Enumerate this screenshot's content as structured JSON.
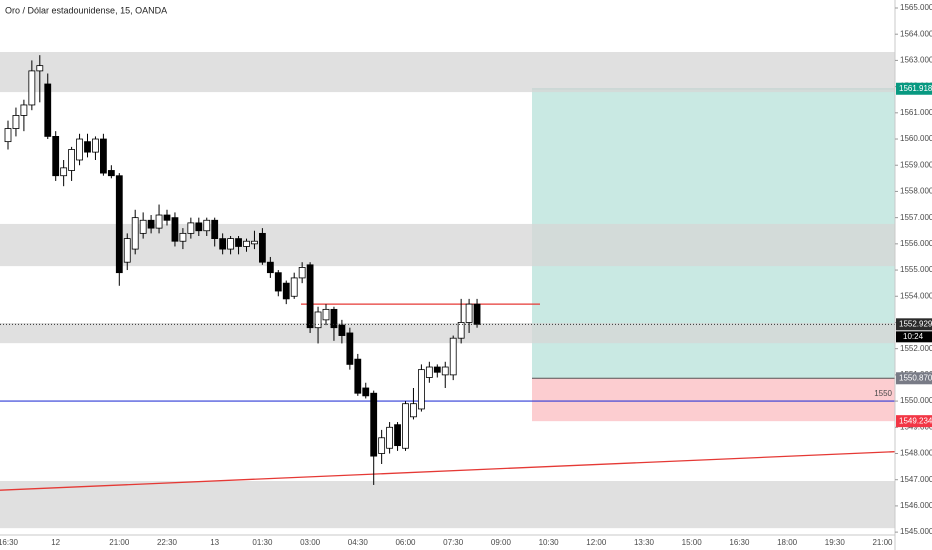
{
  "chart_data": {
    "type": "candlestick",
    "title": "Oro / Dólar estadounidense, 15, OANDA",
    "categories": [
      "16:30",
      null,
      null,
      null,
      null,
      null,
      "12",
      null,
      null,
      null,
      null,
      null,
      null,
      null,
      "21:00",
      null,
      null,
      null,
      null,
      null,
      "22:30",
      null,
      null,
      null,
      null,
      null,
      "13",
      null,
      null,
      null,
      null,
      null,
      "01:30",
      null,
      null,
      null,
      null,
      null,
      "03:00",
      null,
      null,
      null,
      null,
      null,
      "04:30",
      null,
      null,
      null,
      null,
      null,
      "06:00",
      null,
      null,
      null,
      null,
      null,
      "07:30",
      null,
      null,
      null,
      null,
      null,
      "09:00",
      null,
      null,
      null,
      null,
      null,
      "10:30",
      null,
      null,
      null,
      null,
      null,
      "12:00",
      null,
      null,
      null,
      null,
      null,
      "13:30",
      null,
      null,
      null,
      null,
      null,
      "15:00",
      null,
      null,
      null,
      null,
      null,
      "16:30",
      null,
      null,
      null,
      null,
      null,
      "18:00",
      null,
      null,
      null,
      null,
      null,
      "19:30",
      null,
      null,
      null,
      null,
      null,
      "21:00",
      null
    ],
    "open": [
      1559.9,
      1560.4,
      1560.9,
      1561.3,
      1562.6,
      1562.1,
      1560.1,
      1558.6,
      1558.8,
      1559.2,
      1559.9,
      1559.5,
      1560.0,
      1558.8,
      1558.6,
      1555.3,
      1555.8,
      1556.4,
      1556.9,
      1556.6,
      1557.1,
      1557.0,
      1556.1,
      1556.4,
      1556.8,
      1556.5,
      1556.9,
      1556.2,
      1555.8,
      1556.2,
      1555.9,
      1556.0,
      1556.4,
      1555.3,
      1554.9,
      1554.5,
      1554.0,
      1554.7,
      1555.2,
      1552.8,
      1553.1,
      1553.5,
      1552.9,
      1552.6,
      1551.6,
      1550.5,
      1550.3,
      1548.0,
      1548.2,
      1549.1,
      1548.2,
      1549.4,
      1549.7,
      1550.9,
      1551.3,
      1551.0,
      1551.0,
      1552.4,
      1553.0,
      1553.7,
      null,
      null,
      null,
      null,
      null,
      null,
      null,
      null,
      null,
      null,
      null,
      null,
      null,
      null,
      null,
      null,
      null,
      null,
      null,
      null,
      null,
      null,
      null,
      null,
      null,
      null,
      null,
      null,
      null,
      null,
      null,
      null,
      null,
      null,
      null,
      null,
      null,
      null,
      null,
      null,
      null,
      null,
      null,
      null,
      null,
      null,
      null,
      null,
      null,
      null,
      null,
      null
    ],
    "high": [
      1560.7,
      1561.2,
      1561.5,
      1563.0,
      1563.2,
      1562.5,
      1560.3,
      1559.2,
      1559.7,
      1560.2,
      1560.2,
      1560.1,
      1560.2,
      1559.0,
      1558.7,
      1556.4,
      1557.3,
      1557.2,
      1557.1,
      1557.5,
      1557.3,
      1557.2,
      1556.6,
      1557.0,
      1557.0,
      1557.0,
      1557.0,
      1556.4,
      1556.3,
      1556.3,
      1556.2,
      1556.5,
      1556.6,
      1555.5,
      1555.0,
      1554.6,
      1554.9,
      1555.3,
      1555.3,
      1553.6,
      1553.7,
      1553.6,
      1553.1,
      1552.8,
      1551.8,
      1550.7,
      1550.4,
      1548.9,
      1549.2,
      1549.2,
      1550.0,
      1550.5,
      1551.4,
      1551.5,
      1551.4,
      1551.5,
      1552.5,
      1553.9,
      1553.9,
      1553.9,
      null,
      null,
      null,
      null,
      null,
      null,
      null,
      null,
      null,
      null,
      null,
      null,
      null,
      null,
      null,
      null,
      null,
      null,
      null,
      null,
      null,
      null,
      null,
      null,
      null,
      null,
      null,
      null,
      null,
      null,
      null,
      null,
      null,
      null,
      null,
      null,
      null,
      null,
      null,
      null,
      null,
      null,
      null,
      null,
      null,
      null,
      null,
      null,
      null,
      null,
      null,
      null
    ],
    "low": [
      1559.6,
      1560.1,
      1560.3,
      1561.1,
      1561.4,
      1560.0,
      1558.4,
      1558.2,
      1558.4,
      1559.0,
      1559.3,
      1559.2,
      1558.6,
      1558.5,
      1554.4,
      1555.0,
      1555.6,
      1556.2,
      1556.4,
      1556.4,
      1556.7,
      1555.9,
      1555.8,
      1556.2,
      1556.3,
      1556.3,
      1555.9,
      1555.6,
      1555.6,
      1555.6,
      1555.7,
      1555.8,
      1555.2,
      1554.7,
      1554.0,
      1553.7,
      1553.9,
      1554.5,
      1552.6,
      1552.2,
      1552.9,
      1552.3,
      1552.2,
      1551.2,
      1550.2,
      1550.1,
      1546.8,
      1547.6,
      1548.0,
      1548.1,
      1548.1,
      1549.3,
      1549.6,
      1550.7,
      1550.9,
      1550.5,
      1550.8,
      1552.2,
      1552.6,
      1552.8,
      null,
      null,
      null,
      null,
      null,
      null,
      null,
      null,
      null,
      null,
      null,
      null,
      null,
      null,
      null,
      null,
      null,
      null,
      null,
      null,
      null,
      null,
      null,
      null,
      null,
      null,
      null,
      null,
      null,
      null,
      null,
      null,
      null,
      null,
      null,
      null,
      null,
      null,
      null,
      null,
      null,
      null,
      null,
      null,
      null,
      null,
      null,
      null,
      null,
      null,
      null,
      null
    ],
    "close": [
      1560.4,
      1560.9,
      1561.3,
      1562.6,
      1562.8,
      1560.1,
      1558.6,
      1558.9,
      1559.6,
      1560.0,
      1559.5,
      1560.0,
      1558.7,
      1558.6,
      1554.9,
      1556.2,
      1557.0,
      1556.9,
      1556.6,
      1557.1,
      1556.9,
      1556.1,
      1556.4,
      1556.8,
      1556.5,
      1556.9,
      1556.2,
      1555.8,
      1556.2,
      1555.9,
      1556.1,
      1556.1,
      1555.3,
      1554.9,
      1554.2,
      1553.9,
      1554.7,
      1555.1,
      1552.8,
      1553.4,
      1553.5,
      1552.8,
      1552.5,
      1551.4,
      1550.3,
      1550.2,
      1547.9,
      1548.6,
      1549.0,
      1548.3,
      1549.9,
      1549.9,
      1551.2,
      1551.3,
      1551.1,
      1551.3,
      1552.4,
      1553.0,
      1553.7,
      1552.929,
      null,
      null,
      null,
      null,
      null,
      null,
      null,
      null,
      null,
      null,
      null,
      null,
      null,
      null,
      null,
      null,
      null,
      null,
      null,
      null,
      null,
      null,
      null,
      null,
      null,
      null,
      null,
      null,
      null,
      null,
      null,
      null,
      null,
      null,
      null,
      null,
      null,
      null,
      null,
      null,
      null,
      null,
      null,
      null,
      null,
      null,
      null,
      null,
      null,
      null,
      null,
      null
    ],
    "up_color": "#ffffff",
    "down_color": "#000000",
    "ylim": [
      1544.89,
      1565.305
    ],
    "yticks": [
      {
        "value": 1545,
        "label": "1545.000"
      },
      {
        "value": 1546,
        "label": "1546.000"
      },
      {
        "value": 1547,
        "label": "1547.000"
      },
      {
        "value": 1548,
        "label": "1548.000"
      },
      {
        "value": 1549,
        "label": "1549.000"
      },
      {
        "value": 1550,
        "label": "1550.000"
      },
      {
        "value": 1551,
        "label": "1551.000"
      },
      {
        "value": 1552,
        "label": "1552.000"
      },
      {
        "value": 1553,
        "label": "1553.000"
      },
      {
        "value": 1554,
        "label": "1554.000"
      },
      {
        "value": 1555,
        "label": "1555.000"
      },
      {
        "value": 1556,
        "label": "1556.000"
      },
      {
        "value": 1557,
        "label": "1557.000"
      },
      {
        "value": 1558,
        "label": "1558.000"
      },
      {
        "value": 1559,
        "label": "1559.000"
      },
      {
        "value": 1560,
        "label": "1560.000"
      },
      {
        "value": 1561,
        "label": "1561.000"
      },
      {
        "value": 1562,
        "label": "1562.000"
      },
      {
        "value": 1563,
        "label": "1563.000"
      },
      {
        "value": 1564,
        "label": "1564.000"
      },
      {
        "value": 1565,
        "label": "1565.000"
      }
    ],
    "zones": [
      [
        1561.79,
        1563.32
      ],
      [
        1555.15,
        1556.76
      ],
      [
        1552.21,
        1552.98
      ],
      [
        1545.15,
        1546.95
      ]
    ],
    "zone_color": "#d6d6d6",
    "position": {
      "entry": {
        "value": 1550.87,
        "label": "1550.870"
      },
      "target": 1561.918,
      "stop": 1549.234,
      "target_color": "#089981",
      "stop_color": "#f23645",
      "entry_color": "#787b86"
    },
    "hline": {
      "value": 1550,
      "color": "#2f3bd6"
    },
    "level": {
      "value": 1553.7,
      "color": "#e53935"
    },
    "trendline": {
      "values": [
        1546.6,
        1548.07
      ],
      "color": "#e53935"
    },
    "countdown": "10:24"
  }
}
